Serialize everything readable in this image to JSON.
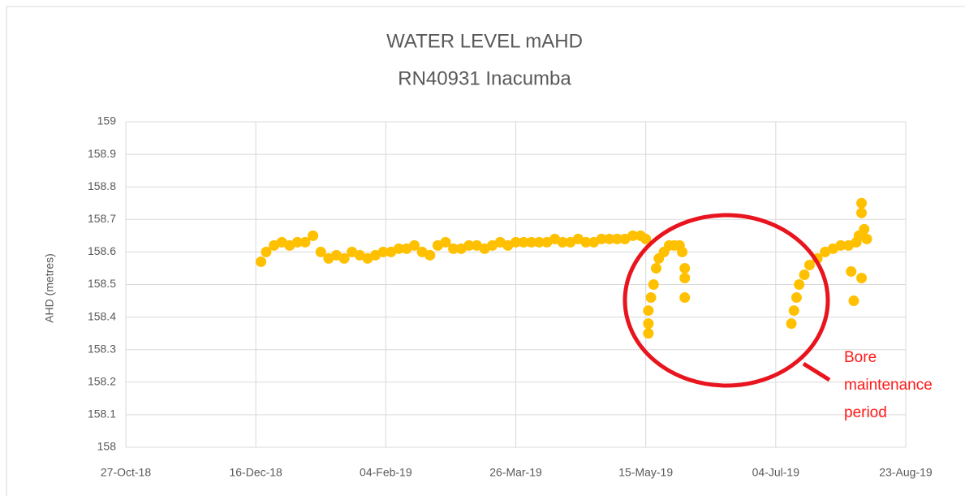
{
  "chart_data": {
    "type": "scatter",
    "title": "WATER LEVEL mAHD",
    "subtitle": "RN40931 Inacumba",
    "y_label": "AHD (metres)",
    "annotation": "Bore maintenance period",
    "color": "#FFC000",
    "grid": true,
    "xlim": [
      "2018-10-27",
      "2019-08-23"
    ],
    "xticks": [
      {
        "value": "2018-10-27",
        "label": "27-Oct-18"
      },
      {
        "value": "2018-12-16",
        "label": "16-Dec-18"
      },
      {
        "value": "2019-02-04",
        "label": "04-Feb-19"
      },
      {
        "value": "2019-03-26",
        "label": "26-Mar-19"
      },
      {
        "value": "2019-05-15",
        "label": "15-May-19"
      },
      {
        "value": "2019-07-04",
        "label": "04-Jul-19"
      },
      {
        "value": "2019-08-23",
        "label": "23-Aug-19"
      }
    ],
    "ylim": [
      158,
      159
    ],
    "yticks": [
      158,
      158.1,
      158.2,
      158.3,
      158.4,
      158.5,
      158.6,
      158.7,
      158.8,
      158.9,
      159
    ],
    "x": [
      "2018-12-18",
      "2018-12-20",
      "2018-12-23",
      "2018-12-26",
      "2018-12-29",
      "2019-01-01",
      "2019-01-04",
      "2019-01-07",
      "2019-01-10",
      "2019-01-13",
      "2019-01-16",
      "2019-01-19",
      "2019-01-22",
      "2019-01-25",
      "2019-01-28",
      "2019-01-31",
      "2019-02-03",
      "2019-02-06",
      "2019-02-09",
      "2019-02-12",
      "2019-02-15",
      "2019-02-18",
      "2019-02-21",
      "2019-02-24",
      "2019-02-27",
      "2019-03-02",
      "2019-03-05",
      "2019-03-08",
      "2019-03-11",
      "2019-03-14",
      "2019-03-17",
      "2019-03-20",
      "2019-03-23",
      "2019-03-26",
      "2019-03-29",
      "2019-04-01",
      "2019-04-04",
      "2019-04-07",
      "2019-04-10",
      "2019-04-13",
      "2019-04-16",
      "2019-04-19",
      "2019-04-22",
      "2019-04-25",
      "2019-04-28",
      "2019-05-01",
      "2019-05-04",
      "2019-05-07",
      "2019-05-10",
      "2019-05-13",
      "2019-05-15",
      "2019-05-16",
      "2019-05-16",
      "2019-05-16",
      "2019-05-17",
      "2019-05-18",
      "2019-05-19",
      "2019-05-20",
      "2019-05-22",
      "2019-05-24",
      "2019-05-26",
      "2019-05-28",
      "2019-05-29",
      "2019-05-30",
      "2019-05-30",
      "2019-05-30",
      "2019-07-10",
      "2019-07-11",
      "2019-07-12",
      "2019-07-13",
      "2019-07-15",
      "2019-07-17",
      "2019-07-20",
      "2019-07-23",
      "2019-07-26",
      "2019-07-29",
      "2019-08-01",
      "2019-08-02",
      "2019-08-03",
      "2019-08-04",
      "2019-08-05",
      "2019-08-06",
      "2019-08-06",
      "2019-08-06",
      "2019-08-07",
      "2019-08-08"
    ],
    "values": [
      158.57,
      158.6,
      158.62,
      158.63,
      158.62,
      158.63,
      158.63,
      158.65,
      158.6,
      158.58,
      158.59,
      158.58,
      158.6,
      158.59,
      158.58,
      158.59,
      158.6,
      158.6,
      158.61,
      158.61,
      158.62,
      158.6,
      158.59,
      158.62,
      158.63,
      158.61,
      158.61,
      158.62,
      158.62,
      158.61,
      158.62,
      158.63,
      158.62,
      158.63,
      158.63,
      158.63,
      158.63,
      158.63,
      158.64,
      158.63,
      158.63,
      158.64,
      158.63,
      158.63,
      158.64,
      158.64,
      158.64,
      158.64,
      158.65,
      158.65,
      158.64,
      158.35,
      158.38,
      158.42,
      158.46,
      158.5,
      158.55,
      158.58,
      158.6,
      158.62,
      158.62,
      158.62,
      158.6,
      158.55,
      158.52,
      158.46,
      158.38,
      158.42,
      158.46,
      158.5,
      158.53,
      158.56,
      158.58,
      158.6,
      158.61,
      158.62,
      158.62,
      158.54,
      158.45,
      158.63,
      158.65,
      158.52,
      158.75,
      158.72,
      158.67,
      158.64
    ]
  }
}
